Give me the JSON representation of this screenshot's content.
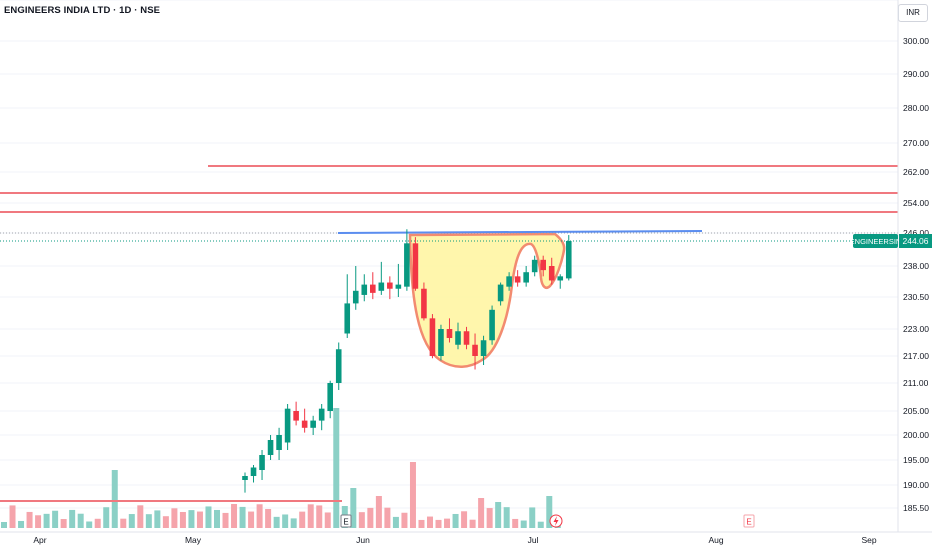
{
  "header": {
    "symbol_title": "ENGINEERS INDIA LTD · 1D · NSE",
    "currency": "INR"
  },
  "price_scale": {
    "ticks": [
      "300.00",
      "290.00",
      "280.00",
      "270.00",
      "262.00",
      "254.00",
      "246.00",
      "238.00",
      "230.50",
      "223.00",
      "217.00",
      "211.00",
      "205.00",
      "200.00",
      "195.00",
      "190.00",
      "185.50"
    ]
  },
  "time_scale": {
    "labels": [
      "Apr",
      "May",
      "Jun",
      "Jul",
      "Aug",
      "Sep"
    ]
  },
  "last_price": {
    "ticker": "ENGINEERSIN",
    "value": "244.06",
    "color": "#089981"
  },
  "colors": {
    "up": "#089981",
    "down": "#f23645",
    "vol_up": "#8bd0c6",
    "vol_down": "#f5a4ab",
    "resistance": "#f0787f",
    "neckline": "#5b8def",
    "cup_fill": "#fff59d",
    "cup_stroke": "#f28b70"
  },
  "markers": {
    "earnings_label": "E"
  },
  "chart_data": {
    "type": "candlestick",
    "title": "ENGINEERS INDIA LTD · 1D · NSE",
    "candles": [
      {
        "date": "May 10",
        "open": 191.0,
        "high": 192.5,
        "low": 188.5,
        "close": 191.8
      },
      {
        "date": "May 13",
        "open": 191.8,
        "high": 194.0,
        "low": 190.5,
        "close": 193.5
      },
      {
        "date": "May 14",
        "open": 193.0,
        "high": 197.0,
        "low": 191.0,
        "close": 196.0
      },
      {
        "date": "May 15",
        "open": 196.0,
        "high": 200.0,
        "low": 195.0,
        "close": 199.0
      },
      {
        "date": "May 16",
        "open": 197.0,
        "high": 201.5,
        "low": 195.0,
        "close": 200.0
      },
      {
        "date": "May 17",
        "open": 198.5,
        "high": 206.5,
        "low": 197.0,
        "close": 205.5
      },
      {
        "date": "May 20",
        "open": 205.0,
        "high": 207.0,
        "low": 202.0,
        "close": 203.0
      },
      {
        "date": "May 21",
        "open": 203.0,
        "high": 205.5,
        "low": 200.5,
        "close": 201.5
      },
      {
        "date": "May 22",
        "open": 201.5,
        "high": 204.0,
        "low": 200.0,
        "close": 203.0
      },
      {
        "date": "May 23",
        "open": 203.0,
        "high": 206.5,
        "low": 201.0,
        "close": 205.5
      },
      {
        "date": "May 24",
        "open": 205.0,
        "high": 211.5,
        "low": 203.5,
        "close": 211.0
      },
      {
        "date": "May 27",
        "open": 211.0,
        "high": 220.0,
        "low": 209.5,
        "close": 218.5
      },
      {
        "date": "May 28",
        "open": 222.0,
        "high": 236.0,
        "low": 221.0,
        "close": 229.0
      },
      {
        "date": "May 29",
        "open": 229.0,
        "high": 238.0,
        "low": 227.5,
        "close": 232.0
      },
      {
        "date": "May 30",
        "open": 231.0,
        "high": 236.0,
        "low": 229.5,
        "close": 233.5
      },
      {
        "date": "May 31",
        "open": 233.5,
        "high": 236.5,
        "low": 230.0,
        "close": 231.5
      },
      {
        "date": "Jun 3",
        "open": 232.0,
        "high": 239.0,
        "low": 231.0,
        "close": 234.0
      },
      {
        "date": "Jun 4",
        "open": 234.0,
        "high": 235.5,
        "low": 230.0,
        "close": 232.5
      },
      {
        "date": "Jun 5",
        "open": 232.5,
        "high": 238.5,
        "low": 230.5,
        "close": 233.5
      },
      {
        "date": "Jun 6",
        "open": 233.0,
        "high": 247.0,
        "low": 232.0,
        "close": 243.5
      },
      {
        "date": "Jun 7",
        "open": 243.5,
        "high": 245.0,
        "low": 232.0,
        "close": 232.5
      },
      {
        "date": "Jun 10",
        "open": 232.5,
        "high": 234.0,
        "low": 225.0,
        "close": 225.5
      },
      {
        "date": "Jun 11",
        "open": 225.5,
        "high": 226.5,
        "low": 216.5,
        "close": 217.0
      },
      {
        "date": "Jun 12",
        "open": 217.0,
        "high": 224.0,
        "low": 216.0,
        "close": 223.0
      },
      {
        "date": "Jun 13",
        "open": 223.0,
        "high": 225.5,
        "low": 220.0,
        "close": 221.0
      },
      {
        "date": "Jun 14",
        "open": 219.5,
        "high": 224.5,
        "low": 218.5,
        "close": 222.5
      },
      {
        "date": "Jun 17",
        "open": 222.5,
        "high": 223.5,
        "low": 218.5,
        "close": 219.5
      },
      {
        "date": "Jun 18",
        "open": 219.5,
        "high": 222.0,
        "low": 214.0,
        "close": 217.0
      },
      {
        "date": "Jun 19",
        "open": 217.0,
        "high": 221.5,
        "low": 215.0,
        "close": 220.5
      },
      {
        "date": "Jun 20",
        "open": 220.5,
        "high": 228.5,
        "low": 219.5,
        "close": 227.5
      },
      {
        "date": "Jun 21",
        "open": 229.5,
        "high": 234.0,
        "low": 228.5,
        "close": 233.5
      },
      {
        "date": "Jun 24",
        "open": 233.0,
        "high": 236.5,
        "low": 232.0,
        "close": 235.5
      },
      {
        "date": "Jun 25",
        "open": 235.5,
        "high": 237.0,
        "low": 233.0,
        "close": 234.0
      },
      {
        "date": "Jun 26",
        "open": 234.0,
        "high": 238.0,
        "low": 233.0,
        "close": 236.5
      },
      {
        "date": "Jun 27",
        "open": 236.5,
        "high": 240.5,
        "low": 235.5,
        "close": 239.5
      },
      {
        "date": "Jun 28",
        "open": 239.5,
        "high": 240.5,
        "low": 235.5,
        "close": 237.0
      },
      {
        "date": "Jul 1",
        "open": 238.0,
        "high": 240.0,
        "low": 233.5,
        "close": 234.5
      },
      {
        "date": "Jul 2",
        "open": 234.5,
        "high": 236.0,
        "low": 232.5,
        "close": 235.5
      },
      {
        "date": "Jul 3",
        "open": 235.0,
        "high": 245.5,
        "low": 234.5,
        "close": 244.06
      }
    ],
    "horizontal_lines": [
      246.5,
      254.5,
      257.5,
      263.5,
      189.5
    ],
    "neckline": [
      245.8,
      246.5
    ],
    "ylim": [
      184,
      306
    ]
  }
}
